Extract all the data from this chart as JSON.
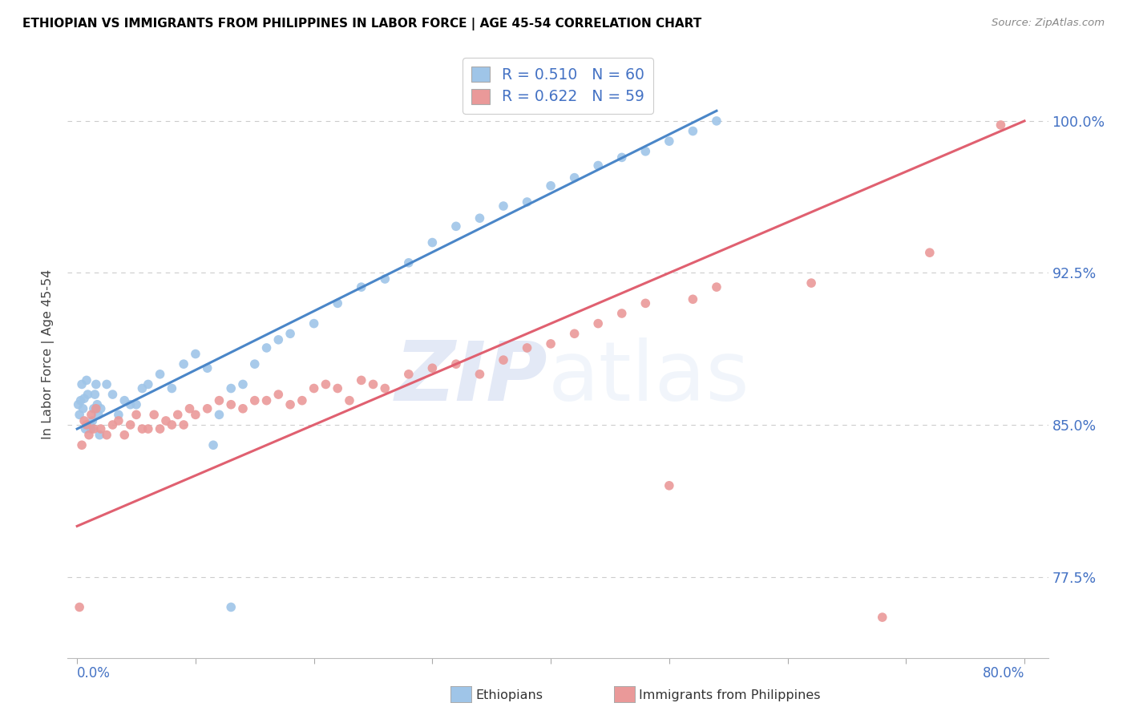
{
  "title": "ETHIOPIAN VS IMMIGRANTS FROM PHILIPPINES IN LABOR FORCE | AGE 45-54 CORRELATION CHART",
  "source": "Source: ZipAtlas.com",
  "ylabel": "In Labor Force | Age 45-54",
  "xlim": [
    -0.008,
    0.82
  ],
  "ylim": [
    0.735,
    1.035
  ],
  "ytick_positions": [
    0.775,
    0.85,
    0.925,
    1.0
  ],
  "ytick_labels": [
    "77.5%",
    "85.0%",
    "92.5%",
    "100.0%"
  ],
  "xtick_left_label": "0.0%",
  "xtick_right_label": "80.0%",
  "legend1_label": "R = 0.510   N = 60",
  "legend2_label": "R = 0.622   N = 59",
  "blue_color": "#9fc5e8",
  "pink_color": "#ea9999",
  "blue_line_color": "#4a86c8",
  "pink_line_color": "#e06070",
  "axis_text_color": "#4472c4",
  "title_color": "#000000",
  "source_color": "#888888",
  "grid_color": "#cccccc",
  "background_color": "#ffffff",
  "blue_scatter_x": [
    0.001,
    0.002,
    0.003,
    0.004,
    0.005,
    0.006,
    0.007,
    0.008,
    0.009,
    0.01,
    0.011,
    0.012,
    0.013,
    0.014,
    0.015,
    0.016,
    0.017,
    0.018,
    0.019,
    0.02,
    0.025,
    0.03,
    0.035,
    0.04,
    0.045,
    0.05,
    0.055,
    0.06,
    0.07,
    0.08,
    0.09,
    0.1,
    0.11,
    0.12,
    0.13,
    0.14,
    0.15,
    0.16,
    0.17,
    0.18,
    0.2,
    0.22,
    0.24,
    0.26,
    0.28,
    0.3,
    0.32,
    0.34,
    0.36,
    0.38,
    0.4,
    0.42,
    0.44,
    0.46,
    0.48,
    0.5,
    0.52,
    0.54,
    0.115,
    0.13
  ],
  "blue_scatter_y": [
    0.86,
    0.855,
    0.862,
    0.87,
    0.858,
    0.863,
    0.848,
    0.872,
    0.865,
    0.85,
    0.85,
    0.848,
    0.852,
    0.858,
    0.865,
    0.87,
    0.86,
    0.855,
    0.845,
    0.858,
    0.87,
    0.865,
    0.855,
    0.862,
    0.86,
    0.86,
    0.868,
    0.87,
    0.875,
    0.868,
    0.88,
    0.885,
    0.878,
    0.855,
    0.868,
    0.87,
    0.88,
    0.888,
    0.892,
    0.895,
    0.9,
    0.91,
    0.918,
    0.922,
    0.93,
    0.94,
    0.948,
    0.952,
    0.958,
    0.96,
    0.968,
    0.972,
    0.978,
    0.982,
    0.985,
    0.99,
    0.995,
    1.0,
    0.84,
    0.76
  ],
  "pink_scatter_x": [
    0.002,
    0.004,
    0.006,
    0.008,
    0.01,
    0.012,
    0.014,
    0.016,
    0.02,
    0.025,
    0.03,
    0.035,
    0.04,
    0.045,
    0.05,
    0.055,
    0.06,
    0.065,
    0.07,
    0.075,
    0.08,
    0.085,
    0.09,
    0.095,
    0.1,
    0.11,
    0.12,
    0.13,
    0.14,
    0.15,
    0.16,
    0.17,
    0.18,
    0.19,
    0.2,
    0.21,
    0.22,
    0.23,
    0.24,
    0.25,
    0.26,
    0.28,
    0.3,
    0.32,
    0.34,
    0.36,
    0.38,
    0.4,
    0.42,
    0.44,
    0.46,
    0.48,
    0.5,
    0.52,
    0.54,
    0.62,
    0.68,
    0.72,
    0.78
  ],
  "pink_scatter_y": [
    0.76,
    0.84,
    0.852,
    0.85,
    0.845,
    0.855,
    0.848,
    0.858,
    0.848,
    0.845,
    0.85,
    0.852,
    0.845,
    0.85,
    0.855,
    0.848,
    0.848,
    0.855,
    0.848,
    0.852,
    0.85,
    0.855,
    0.85,
    0.858,
    0.855,
    0.858,
    0.862,
    0.86,
    0.858,
    0.862,
    0.862,
    0.865,
    0.86,
    0.862,
    0.868,
    0.87,
    0.868,
    0.862,
    0.872,
    0.87,
    0.868,
    0.875,
    0.878,
    0.88,
    0.875,
    0.882,
    0.888,
    0.89,
    0.895,
    0.9,
    0.905,
    0.91,
    0.82,
    0.912,
    0.918,
    0.92,
    0.755,
    0.935,
    0.998
  ],
  "blue_trend_x0": 0.0,
  "blue_trend_y0": 0.848,
  "blue_trend_x1": 0.54,
  "blue_trend_y1": 1.005,
  "pink_trend_x0": 0.0,
  "pink_trend_y0": 0.8,
  "pink_trend_x1": 0.8,
  "pink_trend_y1": 1.0
}
